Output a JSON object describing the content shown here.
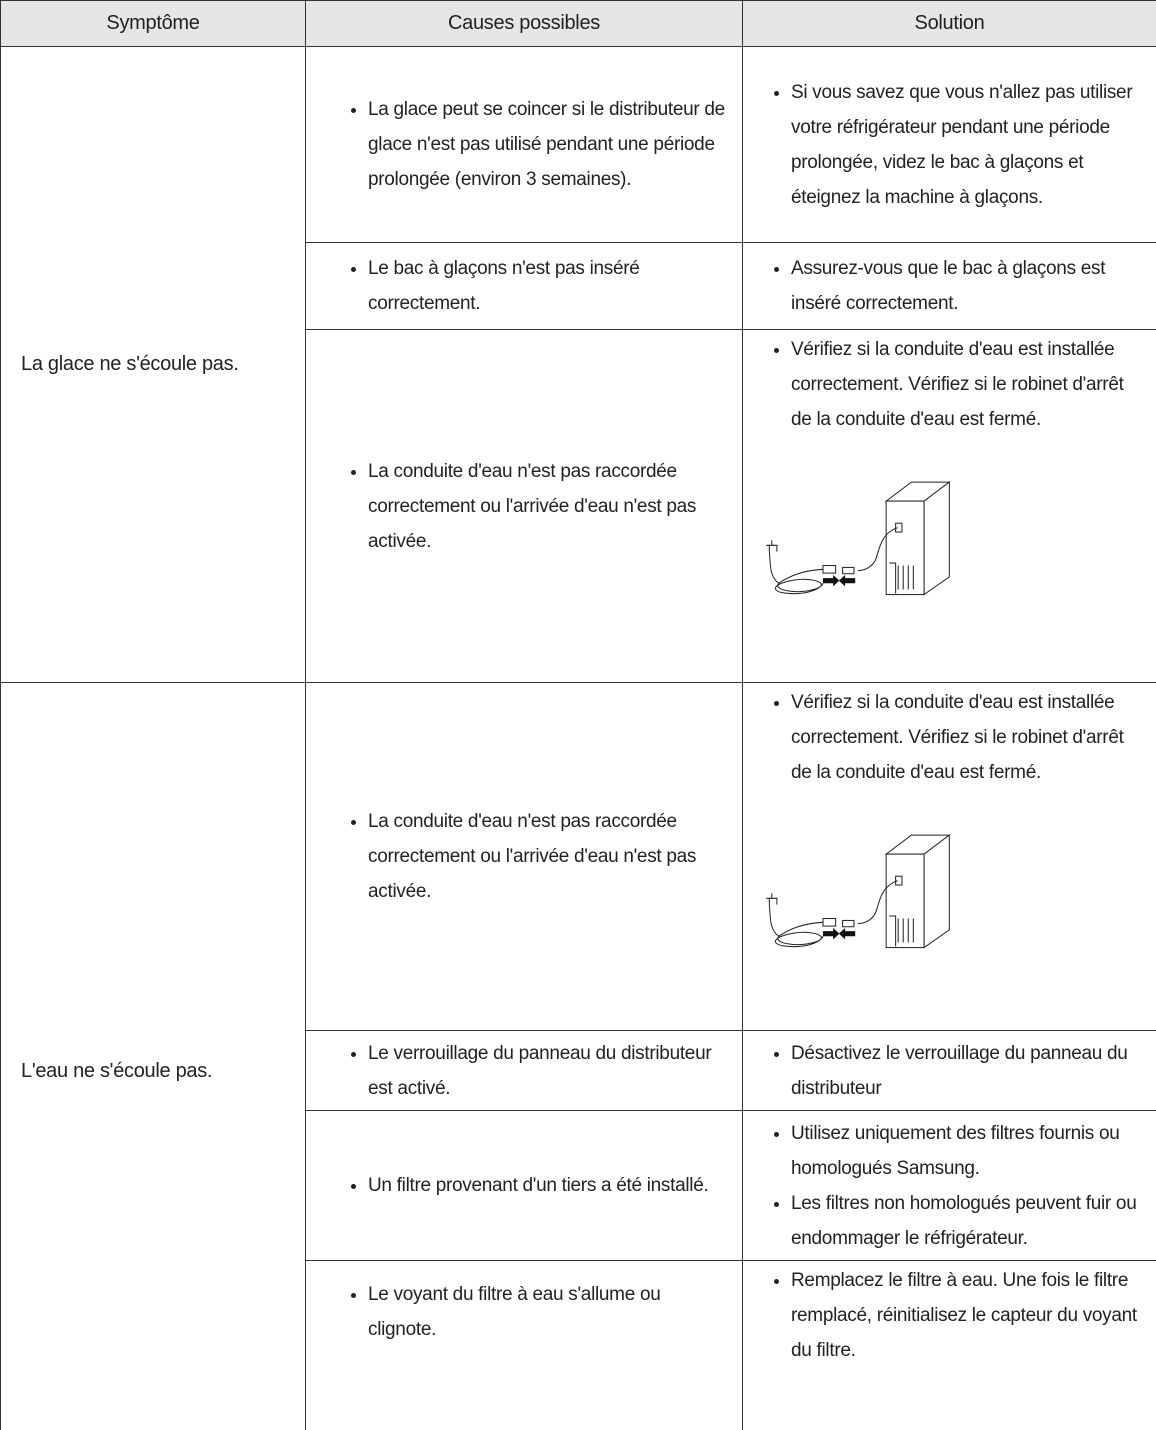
{
  "table": {
    "header": [
      "Symptôme",
      "Causes possibles",
      "Solution"
    ],
    "groups": [
      {
        "symptom": "La glace ne s'écoule pas.",
        "rows": [
          {
            "causes": [
              "La glace peut se coincer si le distributeur de glace n'est pas utilisé pendant une période prolongée (environ 3 semaines)."
            ],
            "solutions": [
              "Si vous savez que vous n'allez pas utiliser votre réfrigérateur pendant une période prolongée, videz le bac à glaçons et éteignez la machine à glaçons."
            ]
          },
          {
            "causes": [
              "Le bac à glaçons n'est pas inséré correctement."
            ],
            "solutions": [
              "Assurez-vous que le bac à glaçons est inséré correctement."
            ]
          },
          {
            "causes": [
              "La conduite d'eau n'est pas raccordée correctement ou l'arrivée d'eau n'est pas activée."
            ],
            "solutions": [
              "Vérifiez si la conduite d'eau est installée correctement. Vérifiez si le robinet d'arrêt de la conduite d'eau est fermé."
            ]
          }
        ]
      },
      {
        "symptom": "L'eau ne s'écoule pas.",
        "rows": [
          {
            "causes": [
              "La conduite d'eau n'est pas raccordée correctement ou l'arrivée d'eau n'est pas activée."
            ],
            "solutions": [
              "Vérifiez si la conduite d'eau est installée correctement. Vérifiez si le robinet d'arrêt de la conduite d'eau est fermé."
            ]
          },
          {
            "causes": [
              "Le verrouillage du panneau du distributeur est activé."
            ],
            "solutions": [
              "Désactivez le verrouillage du panneau du distributeur"
            ]
          },
          {
            "causes": [
              "Un filtre provenant d'un tiers a été installé."
            ],
            "solutions": [
              "Utilisez uniquement des filtres fournis ou homologués Samsung.",
              "Les filtres non homologués peuvent fuir ou endommager le réfrigérateur."
            ]
          },
          {
            "causes": [
              "Le voyant du filtre à eau s'allume ou clignote."
            ],
            "solutions": [
              "Remplacez le filtre à eau. Une fois le filtre remplacé, réinitialisez le capteur du voyant du filtre."
            ]
          }
        ]
      }
    ]
  }
}
